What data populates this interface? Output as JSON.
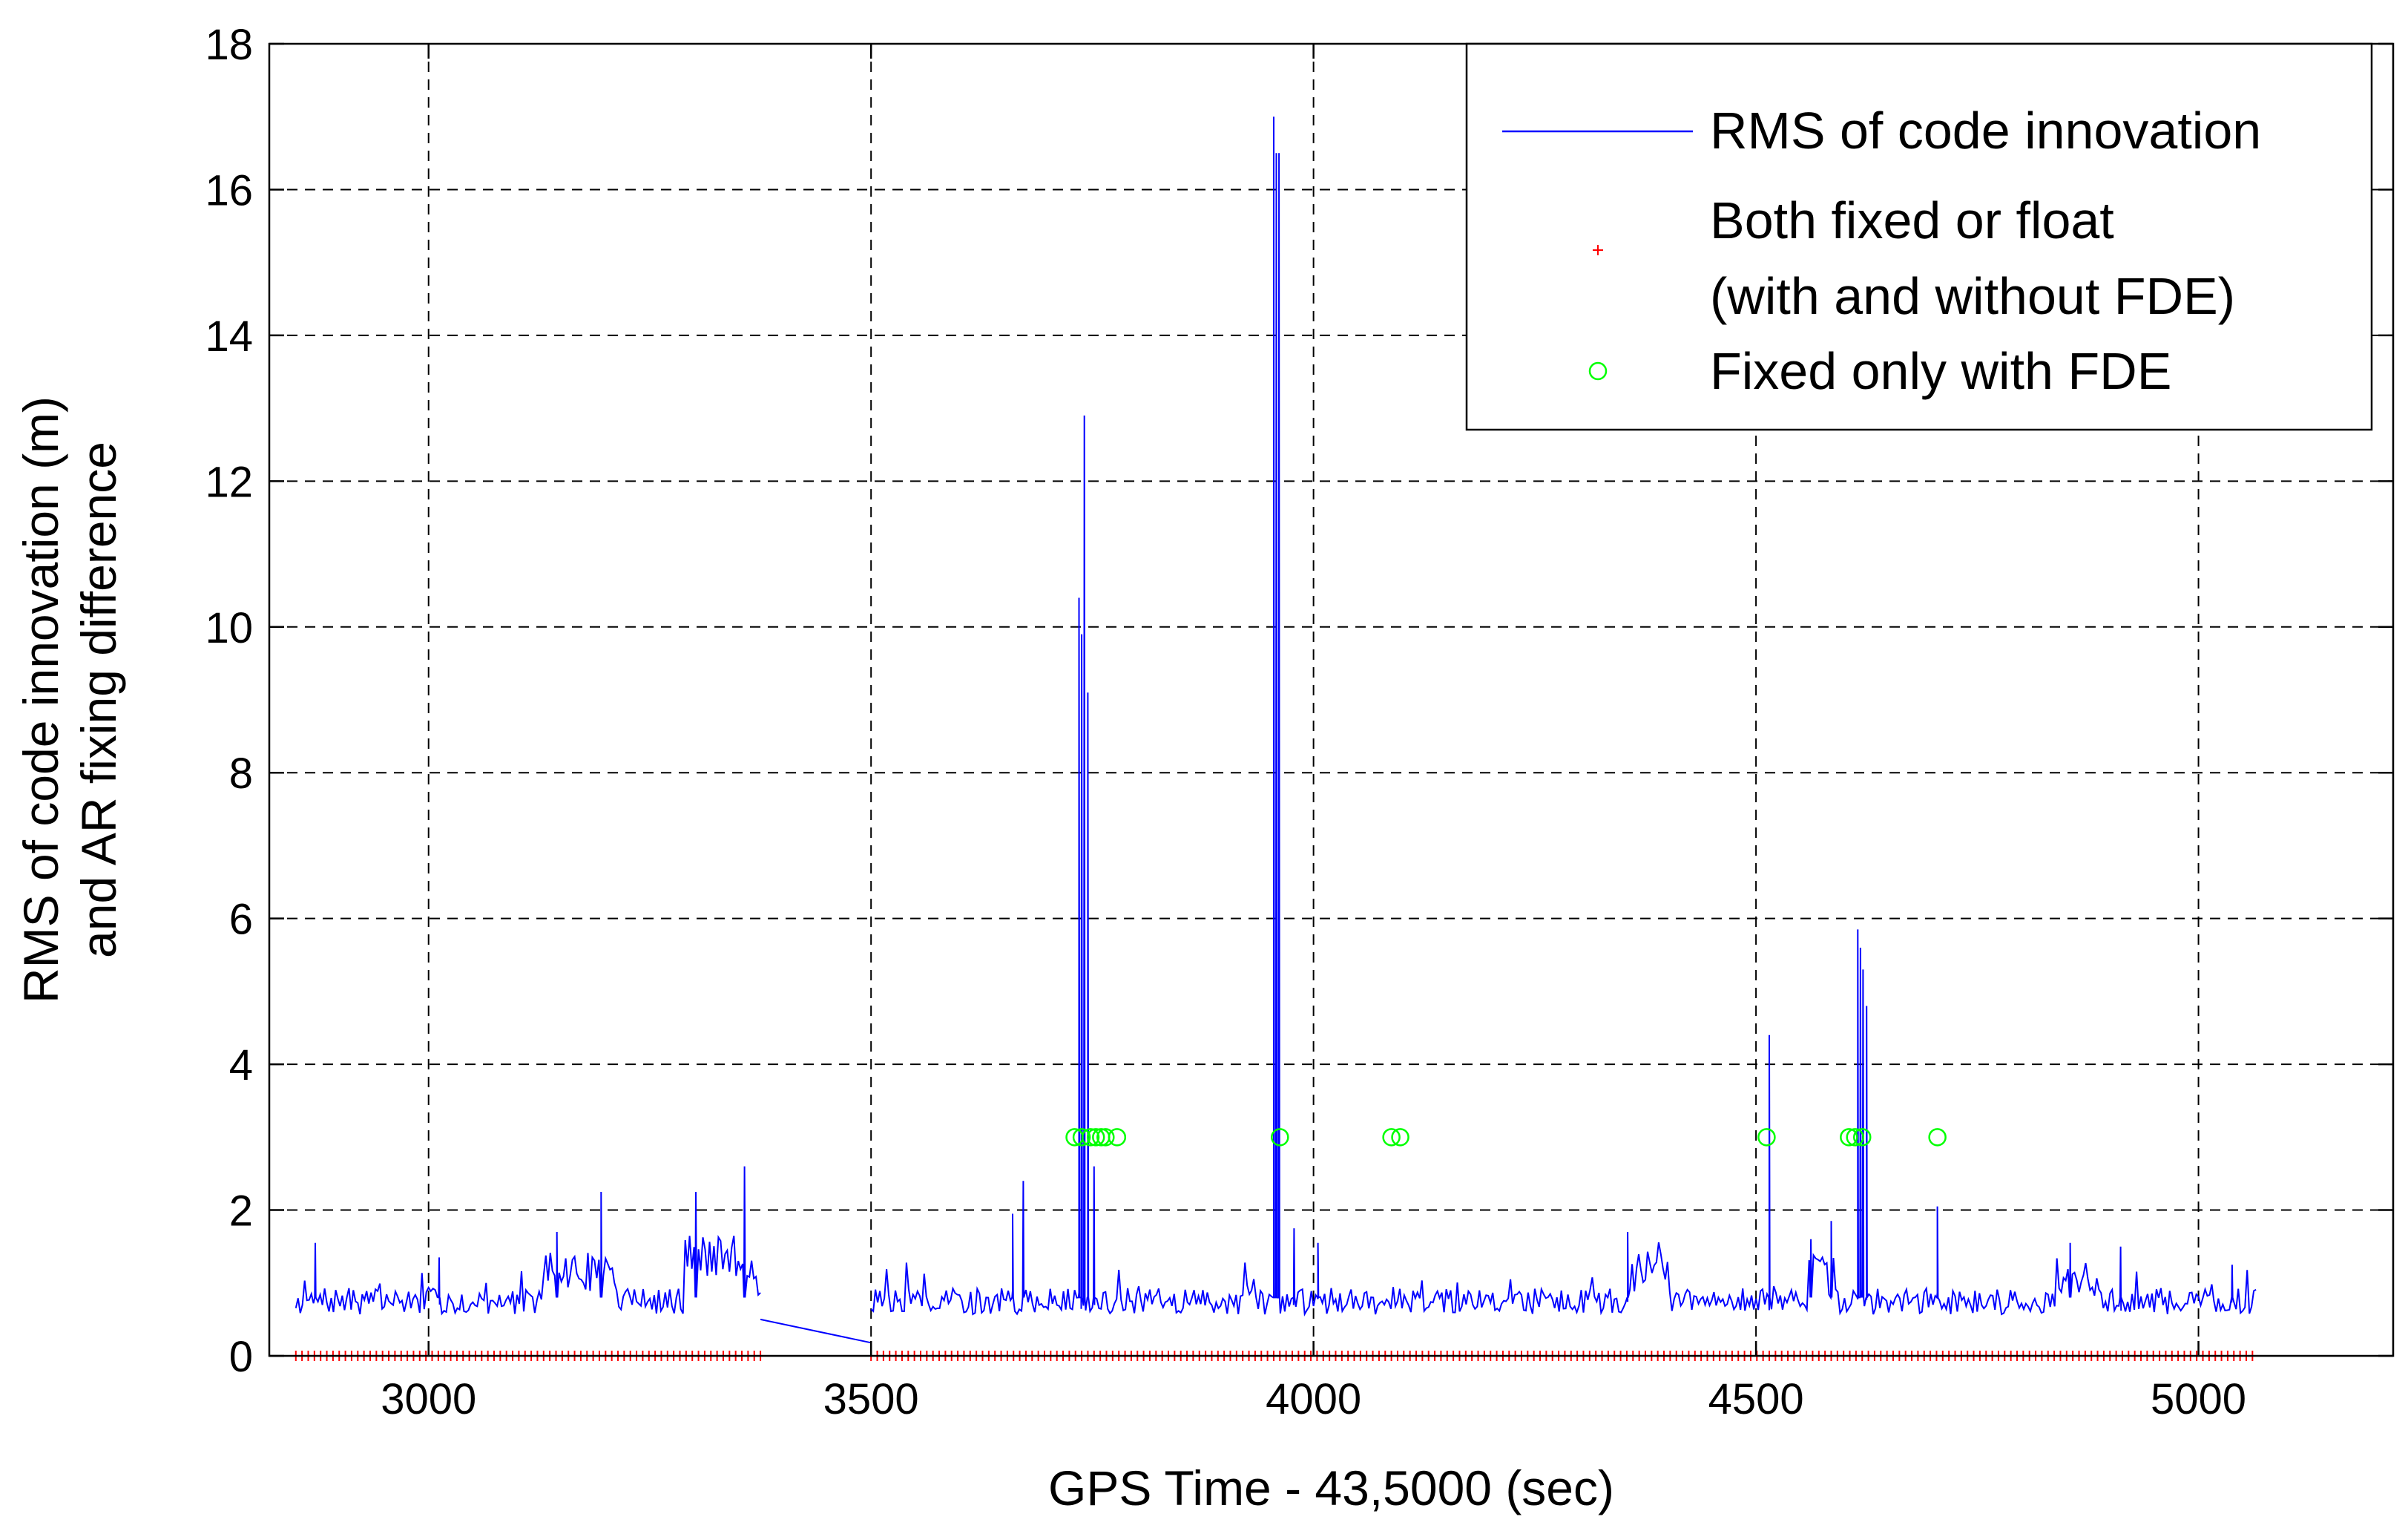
{
  "chart_data": {
    "type": "line",
    "title": "",
    "xlabel": "GPS Time - 43,5000 (sec)",
    "ylabel": [
      "RMS of code innovation (m)",
      "and AR fixing difference"
    ],
    "xlim": [
      2820,
      5220
    ],
    "ylim": [
      0,
      18
    ],
    "xticks": [
      3000,
      3500,
      4000,
      4500,
      5000
    ],
    "yticks": [
      0,
      2,
      4,
      6,
      8,
      10,
      12,
      14,
      16,
      18
    ],
    "grid": true,
    "legend": {
      "position": "top-right",
      "entries": [
        {
          "label": "RMS of code innovation",
          "marker": "line",
          "color": "#0000ff"
        },
        {
          "label": [
            "Both fixed or float",
            "(with and without FDE)"
          ],
          "marker": "plus",
          "color": "#ff0000"
        },
        {
          "label": "Fixed only with FDE",
          "marker": "circle",
          "color": "#00ff00"
        }
      ]
    },
    "series": [
      {
        "marker": "line",
        "color": "#0000ff",
        "noise": {
          "baseline": 0.75,
          "amplitude": 0.18,
          "step": 2.5,
          "seed": 7
        },
        "segments": [
          [
            2850,
            3375
          ],
          [
            3500,
            5065
          ]
        ],
        "bridge": {
          "x": [
            3375,
            3500
          ],
          "y": [
            0.5,
            0.18
          ]
        },
        "bumps": [
          {
            "x": [
              3130,
              3210
            ],
            "y": 1.15
          },
          {
            "x": [
              3290,
              3370
            ],
            "y": 1.35
          },
          {
            "x": [
              4360,
              4400
            ],
            "y": 1.15
          },
          {
            "x": [
              4560,
              4590
            ],
            "y": 1.1
          },
          {
            "x": [
              4840,
              4880
            ],
            "y": 1.1
          }
        ],
        "spikes": [
          {
            "x": 2872,
            "y": 1.55
          },
          {
            "x": 3012,
            "y": 1.35
          },
          {
            "x": 3145,
            "y": 1.7
          },
          {
            "x": 3195,
            "y": 2.25
          },
          {
            "x": 3302,
            "y": 2.25
          },
          {
            "x": 3357,
            "y": 2.6
          },
          {
            "x": 3660,
            "y": 1.95
          },
          {
            "x": 3672,
            "y": 2.4
          },
          {
            "x": 3735,
            "y": 10.4
          },
          {
            "x": 3738,
            "y": 9.9
          },
          {
            "x": 3741,
            "y": 12.9
          },
          {
            "x": 3745,
            "y": 9.1
          },
          {
            "x": 3752,
            "y": 2.6
          },
          {
            "x": 3955,
            "y": 17.0
          },
          {
            "x": 3958,
            "y": 16.5
          },
          {
            "x": 3961,
            "y": 16.5
          },
          {
            "x": 3978,
            "y": 1.75
          },
          {
            "x": 4005,
            "y": 1.55
          },
          {
            "x": 4355,
            "y": 1.7
          },
          {
            "x": 4515,
            "y": 4.4
          },
          {
            "x": 4562,
            "y": 1.6
          },
          {
            "x": 4585,
            "y": 1.85
          },
          {
            "x": 4615,
            "y": 5.85
          },
          {
            "x": 4618,
            "y": 5.6
          },
          {
            "x": 4621,
            "y": 5.3
          },
          {
            "x": 4625,
            "y": 4.8
          },
          {
            "x": 4705,
            "y": 2.05
          },
          {
            "x": 4855,
            "y": 1.55
          },
          {
            "x": 4912,
            "y": 1.5
          },
          {
            "x": 5038,
            "y": 1.25
          }
        ]
      },
      {
        "marker": "plus",
        "color": "#ff0000",
        "y": 0,
        "x_step": 7,
        "segments": [
          [
            2850,
            3375
          ],
          [
            3500,
            5065
          ]
        ]
      },
      {
        "marker": "circle",
        "color": "#00ff00",
        "x": [
          3730,
          3738,
          3748,
          3754,
          3760,
          3765,
          3778,
          3962,
          4088,
          4098,
          4512,
          4605,
          4612,
          4620,
          4705
        ],
        "y": [
          3,
          3,
          3,
          3,
          3,
          3,
          3,
          3,
          3,
          3,
          3,
          3,
          3,
          3,
          3
        ]
      }
    ]
  }
}
